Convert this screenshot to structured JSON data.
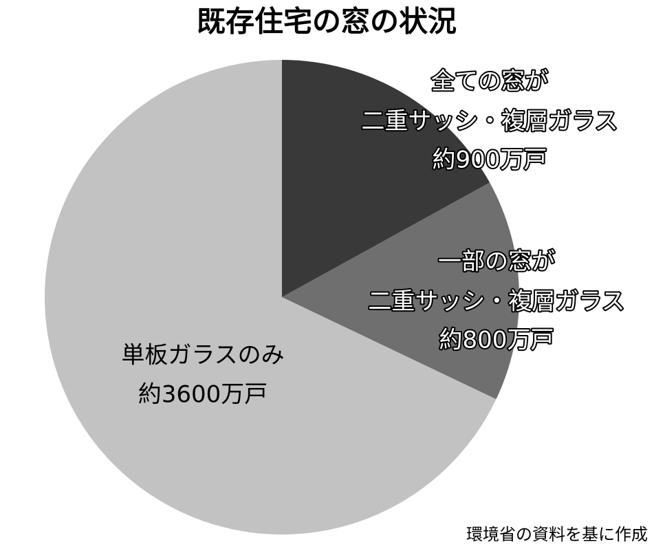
{
  "chart_data": {
    "type": "pie",
    "title": "既存住宅の窓の状況",
    "categories": [
      [
        "全ての窓が",
        "二重サッシ・複層ガラス"
      ],
      [
        "一部の窓が",
        "二重サッシ・複層ガラス"
      ],
      [
        "単板ガラスのみ"
      ]
    ],
    "values": [
      900,
      800,
      3600
    ],
    "value_labels": [
      "約900万戸",
      "約800万戸",
      "約3600万戸"
    ],
    "colors": [
      "#393939",
      "#6f6f6f",
      "#c2c2c2"
    ],
    "source": "環境省の資料を基に作成"
  }
}
